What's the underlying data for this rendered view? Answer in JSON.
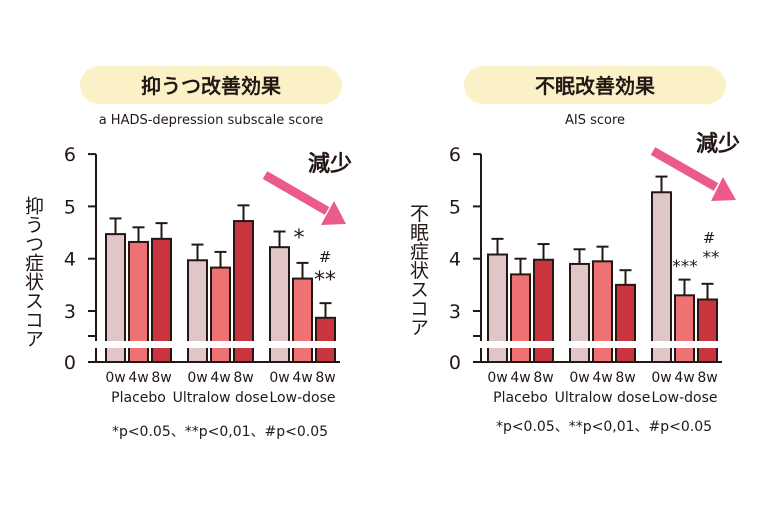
{
  "chart_data": [
    {
      "type": "bar",
      "title": "抑うつ改善効果",
      "subtitle": "a HADS-depression subscale score",
      "ylabel": "抑うつ症状スコア",
      "ylim": [
        0,
        6
      ],
      "ytick_labels": [
        "0",
        "3",
        "4",
        "5",
        "6"
      ],
      "axis_break": true,
      "groups": [
        {
          "name": "Placebo",
          "categories": [
            "0w",
            "4w",
            "8w"
          ],
          "values": [
            4.47,
            4.32,
            4.38
          ],
          "errors": [
            0.3,
            0.28,
            0.3
          ]
        },
        {
          "name": "Ultralow dose",
          "categories": [
            "0w",
            "4w",
            "8w"
          ],
          "values": [
            3.97,
            3.83,
            4.72
          ],
          "errors": [
            0.3,
            0.3,
            0.3
          ]
        },
        {
          "name": "Low-dose",
          "categories": [
            "0w",
            "4w",
            "8w"
          ],
          "values": [
            4.22,
            3.62,
            2.87
          ],
          "errors": [
            0.3,
            0.3,
            0.28
          ]
        }
      ],
      "bar_colors": [
        "#e0c6c7",
        "#ee7174",
        "#c8353e"
      ],
      "annotations": [
        "*",
        "#",
        "**"
      ],
      "arrow_label": "減少",
      "footnote": "*p<0.05、**p<0,01、#p<0.05"
    },
    {
      "type": "bar",
      "title": "不眠改善効果",
      "subtitle": "AIS score",
      "ylabel": "不眠症状スコア",
      "ylim": [
        0,
        6
      ],
      "ytick_labels": [
        "0",
        "3",
        "4",
        "5",
        "6"
      ],
      "axis_break": true,
      "groups": [
        {
          "name": "Placebo",
          "categories": [
            "0w",
            "4w",
            "8w"
          ],
          "values": [
            4.08,
            3.7,
            3.98
          ],
          "errors": [
            0.3,
            0.3,
            0.3
          ]
        },
        {
          "name": "Ultralow dose",
          "categories": [
            "0w",
            "4w",
            "8w"
          ],
          "values": [
            3.9,
            3.95,
            3.5
          ],
          "errors": [
            0.28,
            0.28,
            0.28
          ]
        },
        {
          "name": "Low-dose",
          "categories": [
            "0w",
            "4w",
            "8w"
          ],
          "values": [
            5.27,
            3.3,
            3.22
          ],
          "errors": [
            0.3,
            0.3,
            0.3
          ]
        }
      ],
      "bar_colors": [
        "#e0c6c7",
        "#ee7174",
        "#c8353e"
      ],
      "annotations": [
        "#",
        "***",
        "**"
      ],
      "arrow_label": "減少",
      "footnote": "*p<0.05、**p<0,01、#p<0.05"
    }
  ]
}
